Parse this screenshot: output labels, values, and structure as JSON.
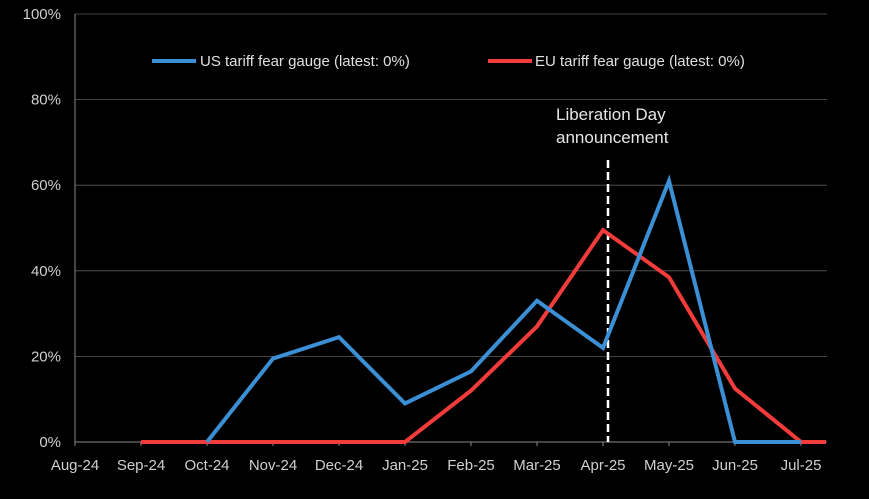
{
  "chart_data": {
    "type": "line",
    "categories": [
      "Aug-24",
      "Sep-24",
      "Oct-24",
      "Nov-24",
      "Dec-24",
      "Jan-25",
      "Feb-25",
      "Mar-25",
      "Apr-25",
      "May-25",
      "Jun-25",
      "Jul-25"
    ],
    "series": [
      {
        "name": "US tariff fear gauge (latest: 0%)",
        "color": "#3b8fd4",
        "x": [
          "Oct-24",
          "Nov-24",
          "Dec-24",
          "Jan-25",
          "Feb-25",
          "Mar-25",
          "Apr-25",
          "May-25",
          "Jun-25",
          "Jul-25"
        ],
        "values": [
          0,
          19.5,
          24.5,
          9,
          16.5,
          33,
          22,
          61,
          0,
          0
        ]
      },
      {
        "name": "EU tariff fear gauge (latest: 0%)",
        "color": "#f23b3b",
        "x": [
          "Sep-24",
          "Oct-24",
          "Nov-24",
          "Dec-24",
          "Jan-25",
          "Feb-25",
          "Mar-25",
          "Apr-25",
          "May-25",
          "Jun-25",
          "Jul-25",
          "Jul-25+"
        ],
        "values": [
          0,
          0,
          0,
          0,
          0,
          12,
          27,
          49.5,
          38.5,
          12.5,
          0,
          0
        ]
      }
    ],
    "yticks": [
      "0%",
      "20%",
      "40%",
      "60%",
      "80%",
      "100%"
    ],
    "ylim": [
      0,
      100
    ],
    "grid": true,
    "legend": "top-center",
    "annotation": {
      "x": "Apr-25",
      "line1": "Liberation Day",
      "line2": "announcement"
    }
  }
}
